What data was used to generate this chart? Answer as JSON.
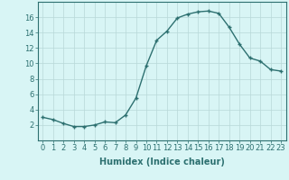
{
  "x": [
    0,
    1,
    2,
    3,
    4,
    5,
    6,
    7,
    8,
    9,
    10,
    11,
    12,
    13,
    14,
    15,
    16,
    17,
    18,
    19,
    20,
    21,
    22,
    23
  ],
  "y": [
    3.0,
    2.7,
    2.2,
    1.8,
    1.8,
    2.0,
    2.4,
    2.3,
    3.3,
    5.5,
    9.7,
    13.0,
    14.2,
    15.9,
    16.4,
    16.7,
    16.8,
    16.5,
    14.7,
    12.5,
    10.7,
    10.3,
    9.2,
    9.0
  ],
  "line_color": "#2d7070",
  "marker": "+",
  "marker_size": 3,
  "bg_color": "#d8f5f5",
  "grid_color": "#b8d8d8",
  "xlabel": "Humidex (Indice chaleur)",
  "ylim": [
    0,
    18
  ],
  "xlim": [
    -0.5,
    23.5
  ],
  "yticks": [
    2,
    4,
    6,
    8,
    10,
    12,
    14,
    16
  ],
  "xticks": [
    0,
    1,
    2,
    3,
    4,
    5,
    6,
    7,
    8,
    9,
    10,
    11,
    12,
    13,
    14,
    15,
    16,
    17,
    18,
    19,
    20,
    21,
    22,
    23
  ],
  "xlabel_fontsize": 7,
  "tick_fontsize": 6,
  "line_width": 1.0
}
